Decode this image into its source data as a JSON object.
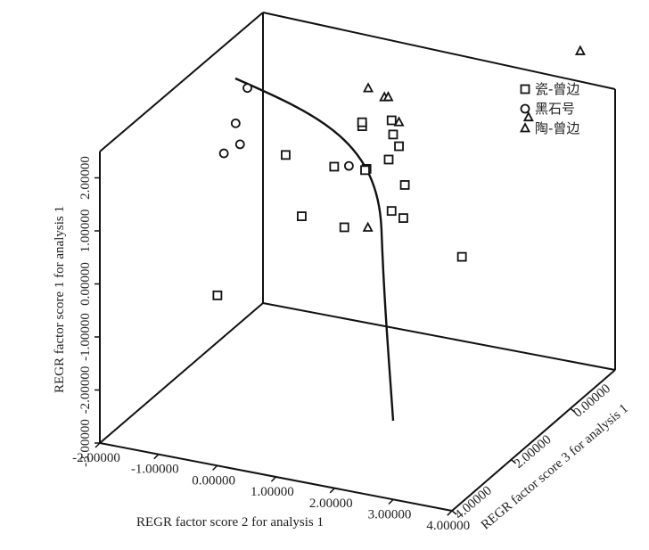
{
  "chart_data": {
    "type": "scatter",
    "projection": "3d",
    "xlabel": "REGR factor score 2 for analysis 1",
    "ylabel": "REGR factor score 1 for analysis 1",
    "zlabel": "REGR factor score 3 for analysis 1",
    "x_ticks": [
      "-2.00000",
      "-1.00000",
      "0.00000",
      "1.00000",
      "2.00000",
      "3.00000",
      "4.00000"
    ],
    "y_ticks": [
      "-3.00000",
      "-2.00000",
      "-1.00000",
      "0.00000",
      "1.00000",
      "2.00000"
    ],
    "z_ticks": [
      "4.00000",
      "2.00000",
      "0.00000"
    ],
    "xlim": [
      -2,
      4
    ],
    "ylim": [
      -3,
      2.5
    ],
    "zlim": [
      4,
      -1.5
    ],
    "legend_position": "top-right",
    "series": [
      {
        "name": "瓷-曾边",
        "marker": "square",
        "points": [
          {
            "x": -0.35,
            "y": -0.2,
            "z": 3.3
          },
          {
            "x": -0.3,
            "y": 1.4,
            "z": 1.1
          },
          {
            "x": 0.1,
            "y": 0.45,
            "z": 1.35
          },
          {
            "x": 0.35,
            "y": 1.15,
            "z": 0.75
          },
          {
            "x": 0.6,
            "y": 1.75,
            "z": 0.3
          },
          {
            "x": 0.75,
            "y": 2.0,
            "z": 0.6
          },
          {
            "x": 0.75,
            "y": 1.05,
            "z": 0.45
          },
          {
            "x": 0.7,
            "y": 0.25,
            "z": 1.1
          },
          {
            "x": 0.95,
            "y": 1.5,
            "z": -0.05
          },
          {
            "x": 0.95,
            "y": 1.1,
            "z": 0.1
          },
          {
            "x": 1.0,
            "y": 1.85,
            "z": 0.1
          },
          {
            "x": 1.05,
            "y": 1.3,
            "z": -0.05
          },
          {
            "x": 1.05,
            "y": 0.2,
            "z": 0.2
          },
          {
            "x": 1.2,
            "y": 0.65,
            "z": 0.05
          },
          {
            "x": 1.2,
            "y": 0.05,
            "z": 0.1
          },
          {
            "x": 2.3,
            "y": -0.35,
            "z": 0.3
          },
          {
            "x": 0.75,
            "y": 1.05,
            "z": 0.5
          }
        ]
      },
      {
        "name": "黑石号",
        "marker": "circle",
        "points": [
          {
            "x": -0.8,
            "y": 2.7,
            "z": 1.4
          },
          {
            "x": -0.95,
            "y": 2.05,
            "z": 1.5
          },
          {
            "x": -0.85,
            "y": 1.7,
            "z": 1.55
          },
          {
            "x": -1.1,
            "y": 1.5,
            "z": 1.6
          },
          {
            "x": 0.5,
            "y": 1.1,
            "z": 0.55
          }
        ]
      },
      {
        "name": "陶-曾边",
        "marker": "triangle",
        "points": [
          {
            "x": 0.5,
            "y": 2.25,
            "z": -0.1
          },
          {
            "x": 0.7,
            "y": 2.05,
            "z": -0.25
          },
          {
            "x": 0.75,
            "y": 2.05,
            "z": -0.28
          },
          {
            "x": 2.6,
            "y": 1.55,
            "z": -1.35
          },
          {
            "x": 2.85,
            "y": 2.25,
            "z": -2.6
          },
          {
            "x": 0.95,
            "y": 0.15,
            "z": 0.8
          },
          {
            "x": 1.05,
            "y": 1.75,
            "z": -0.05
          }
        ]
      }
    ]
  }
}
